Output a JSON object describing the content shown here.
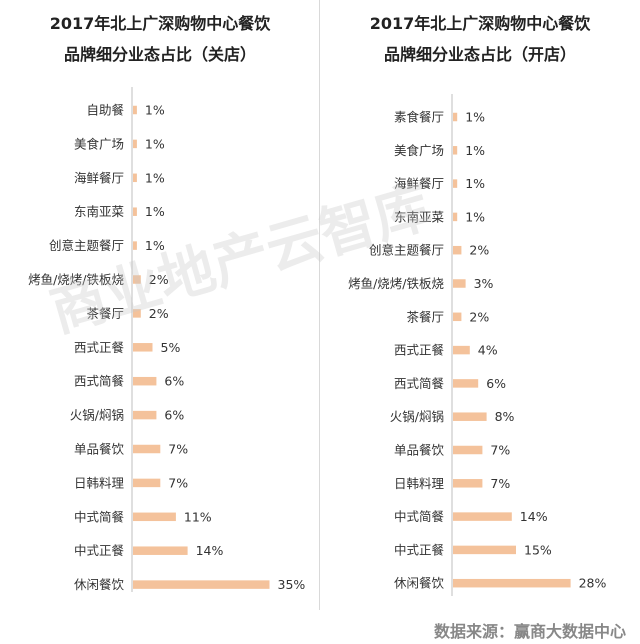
{
  "watermark": "商业地产云智库",
  "source": "数据来源：赢商大数据中心",
  "colors": {
    "bar": "#f4c29b",
    "axis": "#bfbfbf",
    "divider": "#d9d9d9"
  },
  "chart_data": [
    {
      "type": "bar",
      "orientation": "horizontal",
      "title": "2017年北上广深购物中心餐饮",
      "subtitle": "品牌细分业态占比（关店）",
      "unit": "%",
      "categories": [
        "自助餐",
        "美食广场",
        "海鲜餐厅",
        "东南亚菜",
        "创意主题餐厅",
        "烤鱼/烧烤/铁板烧",
        "茶餐厅",
        "西式正餐",
        "西式简餐",
        "火锅/焖锅",
        "单品餐饮",
        "日韩料理",
        "中式简餐",
        "中式正餐",
        "休闲餐饮"
      ],
      "values": [
        1,
        1,
        1,
        1,
        1,
        2,
        2,
        5,
        6,
        6,
        7,
        7,
        11,
        14,
        35
      ],
      "value_labels": [
        "1%",
        "1%",
        "1%",
        "1%",
        "1%",
        "2%",
        "2%",
        "5%",
        "6%",
        "6%",
        "7%",
        "7%",
        "11%",
        "14%",
        "35%"
      ],
      "grid": false,
      "legend": "none"
    },
    {
      "type": "bar",
      "orientation": "horizontal",
      "title": "2017年北上广深购物中心餐饮",
      "subtitle": "品牌细分业态占比（开店）",
      "unit": "%",
      "categories": [
        "素食餐厅",
        "美食广场",
        "海鲜餐厅",
        "东南亚菜",
        "创意主题餐厅",
        "烤鱼/烧烤/铁板烧",
        "茶餐厅",
        "西式正餐",
        "西式简餐",
        "火锅/焖锅",
        "单品餐饮",
        "日韩料理",
        "中式简餐",
        "中式正餐",
        "休闲餐饮"
      ],
      "values": [
        1,
        1,
        1,
        1,
        2,
        3,
        2,
        4,
        6,
        8,
        7,
        7,
        14,
        15,
        28
      ],
      "value_labels": [
        "1%",
        "1%",
        "1%",
        "1%",
        "2%",
        "3%",
        "2%",
        "4%",
        "6%",
        "8%",
        "7%",
        "7%",
        "14%",
        "15%",
        "28%"
      ],
      "grid": false,
      "legend": "none"
    }
  ]
}
